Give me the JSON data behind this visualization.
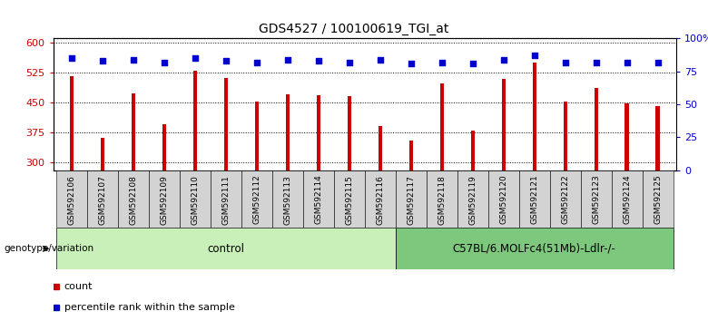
{
  "title": "GDS4527 / 100100619_TGI_at",
  "samples": [
    "GSM592106",
    "GSM592107",
    "GSM592108",
    "GSM592109",
    "GSM592110",
    "GSM592111",
    "GSM592112",
    "GSM592113",
    "GSM592114",
    "GSM592115",
    "GSM592116",
    "GSM592117",
    "GSM592118",
    "GSM592119",
    "GSM592120",
    "GSM592121",
    "GSM592122",
    "GSM592123",
    "GSM592124",
    "GSM592125"
  ],
  "counts": [
    515,
    360,
    472,
    395,
    530,
    510,
    453,
    471,
    468,
    465,
    390,
    355,
    498,
    380,
    508,
    550,
    453,
    487,
    447,
    440
  ],
  "percentile_ranks": [
    85,
    83,
    84,
    82,
    85,
    83,
    82,
    84,
    83,
    82,
    84,
    81,
    82,
    81,
    84,
    87,
    82,
    82,
    82,
    82
  ],
  "control_count": 11,
  "treatment_count": 9,
  "control_label": "control",
  "treatment_label": "C57BL/6.MOLFc4(51Mb)-Ldlr-/-",
  "genotype_label": "genotype/variation",
  "ylim_left": [
    280,
    610
  ],
  "ylim_right": [
    0,
    100
  ],
  "yticks_left": [
    300,
    375,
    450,
    525,
    600
  ],
  "yticks_right": [
    0,
    25,
    50,
    75,
    100
  ],
  "bar_color": "#cc0000",
  "dot_color": "#0000cc",
  "cell_bg": "#d3d3d3",
  "control_bg": "#c8f0b8",
  "treatment_bg": "#7ec87e",
  "legend_count_color": "#cc0000",
  "legend_pct_color": "#0000cc"
}
